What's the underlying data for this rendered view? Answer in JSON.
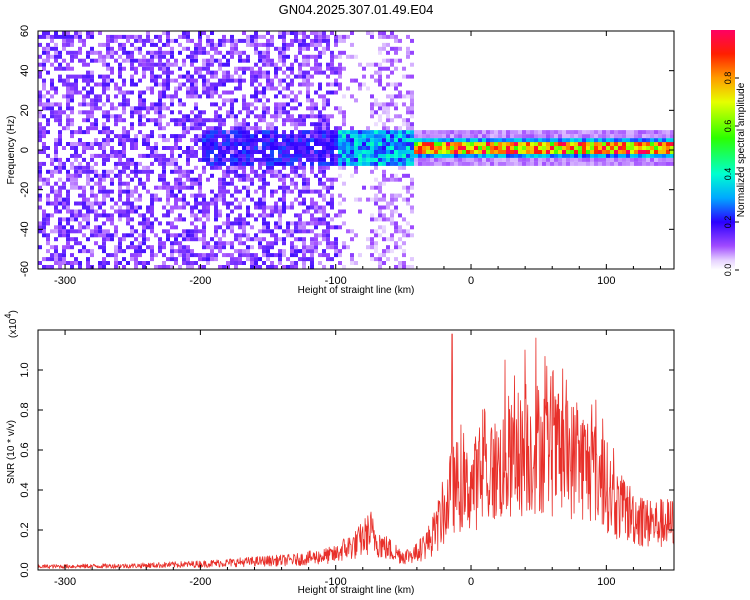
{
  "title": "GN04.2025.307.01.49.E04",
  "chart_data": [
    {
      "type": "heatmap",
      "title": "GN04.2025.307.01.49.E04",
      "xlabel": "Height of straight line (km)",
      "ylabel": "Frequency (Hz)",
      "xlim": [
        -320,
        150
      ],
      "ylim": [
        -60,
        60
      ],
      "xticks": [
        -300,
        -200,
        -100,
        0,
        100
      ],
      "yticks": [
        -60,
        -40,
        -20,
        0,
        20,
        40,
        60
      ],
      "colorbar": {
        "label": "Normalized spectral amplitude",
        "range": [
          0.0,
          1.0
        ],
        "ticks": [
          0.0,
          0.2,
          0.4,
          0.6,
          0.8
        ],
        "tick_labels": [
          "0.0",
          "0.2",
          "0.4",
          "0.6",
          "0.8"
        ]
      },
      "pattern": [
        {
          "region": "x -320 to -100",
          "frequency_band": "full -60 to 60",
          "amplitude": 0.15,
          "description": "scattered blotches"
        },
        {
          "region": "x -100 to -45",
          "frequency_band": "full -60 to 60",
          "amplitude": 0.08,
          "description": "faint scattered"
        },
        {
          "region": "x -180 to -40",
          "frequency_band": "-10 to 10",
          "amplitude": 0.3
        },
        {
          "region": "x -40 to 150",
          "frequency_band": "-3 to 3",
          "amplitude": 0.9,
          "description": "narrow band near 0 Hz"
        }
      ]
    },
    {
      "type": "line",
      "xlabel": "Height of straight line (km)",
      "ylabel": "SNR (10 * v/v)",
      "scale_label": "(x10",
      "scale_exponent": "4",
      "xlim": [
        -320,
        150
      ],
      "ylim": [
        0,
        1.2
      ],
      "xticks": [
        -300,
        -200,
        -100,
        0,
        100
      ],
      "yticks": [
        0.0,
        0.2,
        0.4,
        0.6,
        0.8,
        1.0
      ],
      "series": [
        {
          "name": "SNR",
          "color": "#e8302a",
          "envelope_x": [
            -320,
            -250,
            -200,
            -160,
            -130,
            -110,
            -100,
            -95,
            -85,
            -75,
            -70,
            -65,
            -60,
            -50,
            -40,
            -30,
            -25,
            -20,
            -15,
            -10,
            -5,
            0,
            10,
            20,
            30,
            40,
            50,
            60,
            70,
            80,
            90,
            100,
            105,
            110,
            115,
            120,
            130,
            140,
            150
          ],
          "envelope_y": [
            0.02,
            0.025,
            0.035,
            0.05,
            0.06,
            0.08,
            0.09,
            0.12,
            0.15,
            0.22,
            0.18,
            0.14,
            0.12,
            0.08,
            0.1,
            0.18,
            0.25,
            0.35,
            0.5,
            0.55,
            0.5,
            0.55,
            0.6,
            0.65,
            0.7,
            0.75,
            0.8,
            0.75,
            0.72,
            0.7,
            0.65,
            0.55,
            0.45,
            0.4,
            0.38,
            0.35,
            0.3,
            0.3,
            0.3
          ],
          "peaks": [
            {
              "x": -14,
              "y": 1.18
            },
            {
              "x": 48,
              "y": 1.16
            },
            {
              "x": 40,
              "y": 1.1
            },
            {
              "x": 25,
              "y": 1.05
            },
            {
              "x": -74,
              "y": 0.29
            }
          ]
        }
      ]
    }
  ]
}
